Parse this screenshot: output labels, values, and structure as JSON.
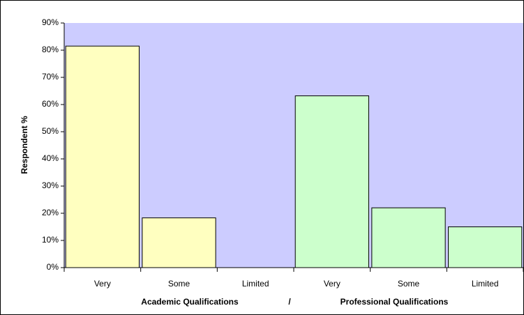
{
  "chart_data": {
    "type": "bar",
    "ylabel": "Respondent %",
    "xlabel": [
      "Academic Qualifications",
      "/",
      "Professional Qualifications"
    ],
    "categories": [
      "Very",
      "Some",
      "Limited",
      "Very",
      "Some",
      "Limited"
    ],
    "values": [
      81.5,
      18.3,
      0,
      63.2,
      22,
      15
    ],
    "colors": [
      "#ffffc0",
      "#ffffc0",
      "#ffffc0",
      "#ccffcc",
      "#ccffcc",
      "#ccffcc"
    ],
    "plot_background": "#ccccff",
    "ylim": [
      0,
      90
    ],
    "yticks": [
      {
        "value": 0,
        "label": "0%"
      },
      {
        "value": 10,
        "label": "10%"
      },
      {
        "value": 20,
        "label": "20%"
      },
      {
        "value": 30,
        "label": "30%"
      },
      {
        "value": 40,
        "label": "40%"
      },
      {
        "value": 50,
        "label": "50%"
      },
      {
        "value": 60,
        "label": "60%"
      },
      {
        "value": 70,
        "label": "70%"
      },
      {
        "value": 80,
        "label": "80%"
      },
      {
        "value": 90,
        "label": "90%"
      }
    ],
    "grid": false
  }
}
